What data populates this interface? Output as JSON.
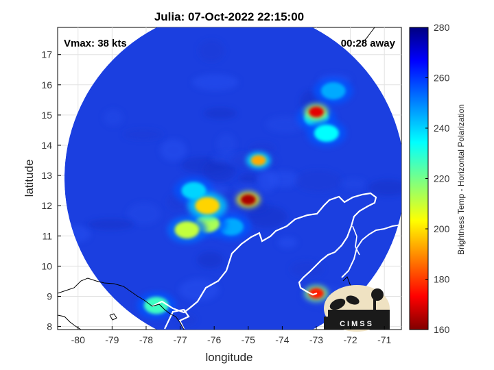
{
  "chart_data": {
    "type": "heatmap",
    "title": "Julia: 07-Oct-2022 22:15:00",
    "xlabel": "longitude",
    "ylabel": "latitude",
    "xlim": [
      -80.6,
      -70.5
    ],
    "ylim": [
      7.9,
      17.9
    ],
    "xticks": [
      -80,
      -79,
      -78,
      -77,
      -76,
      -75,
      -74,
      -73,
      -72,
      -71
    ],
    "yticks": [
      8,
      9,
      10,
      11,
      12,
      13,
      14,
      15,
      16,
      17
    ],
    "grid": true,
    "annotations": {
      "vmax": "Vmax: 38 kts",
      "away": "00:28 away"
    },
    "colorbar": {
      "label": "Brightness Temp - Horizontal Polarization",
      "range": [
        160,
        280
      ],
      "ticks": [
        160,
        180,
        200,
        220,
        240,
        260,
        280
      ],
      "colormap": "jet"
    },
    "swath": {
      "center_lon": -75.4,
      "center_lat": 12.9,
      "radius_deg": 5.0
    },
    "features": [
      {
        "lon": -75.0,
        "lat": 12.2,
        "tb": 165
      },
      {
        "lon": -73.0,
        "lat": 15.1,
        "tb": 172
      },
      {
        "lon": -73.0,
        "lat": 9.1,
        "tb": 178
      },
      {
        "lon": -74.7,
        "lat": 13.5,
        "tb": 195
      },
      {
        "lon": -76.2,
        "lat": 12.0,
        "tb": 200
      },
      {
        "lon": -76.2,
        "lat": 11.4,
        "tb": 215
      },
      {
        "lon": -76.8,
        "lat": 11.2,
        "tb": 212
      },
      {
        "lon": -72.7,
        "lat": 14.4,
        "tb": 235
      },
      {
        "lon": -73.0,
        "lat": 14.9,
        "tb": 240
      },
      {
        "lon": -72.5,
        "lat": 15.8,
        "tb": 245
      },
      {
        "lon": -77.7,
        "lat": 8.7,
        "tb": 228
      },
      {
        "lon": -76.6,
        "lat": 12.5,
        "tb": 240
      },
      {
        "lon": -75.5,
        "lat": 11.3,
        "tb": 245
      }
    ],
    "coastline_labels": []
  },
  "logo": {
    "text": "CIMSS"
  },
  "colors": {
    "background": "#ffffff",
    "coast": "#ffffff",
    "land_outline": "#000000"
  }
}
